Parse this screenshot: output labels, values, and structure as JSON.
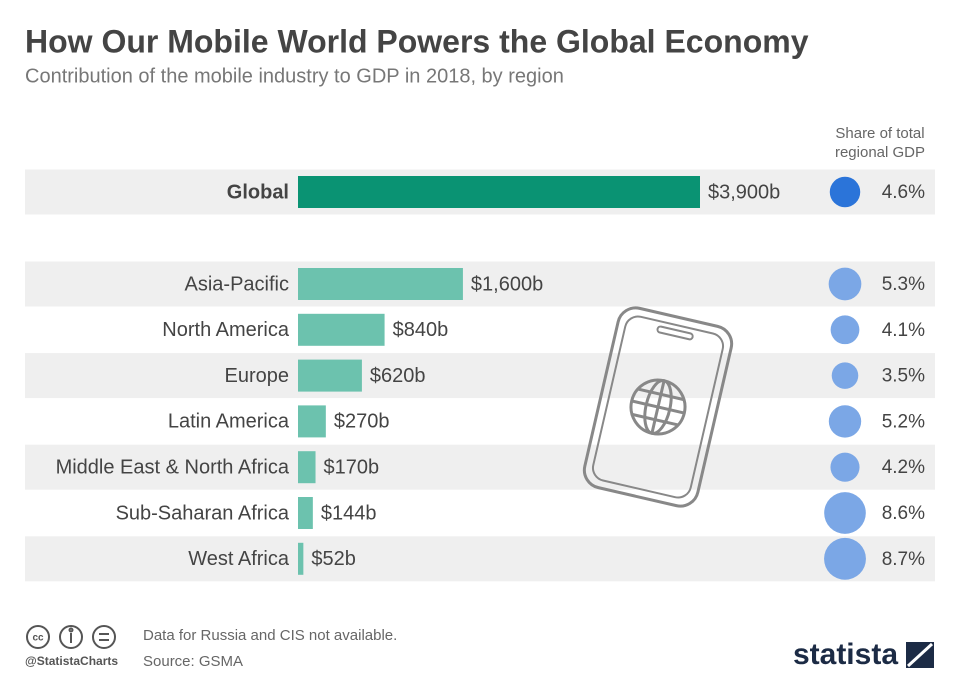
{
  "chart_data": {
    "type": "bar",
    "title": "How Our Mobile World Powers the Global Economy",
    "subtitle": "Contribution of the mobile industry to GDP in 2018, by region",
    "categories": [
      "Global",
      "Asia-Pacific",
      "North America",
      "Europe",
      "Latin America",
      "Middle East & North Africa",
      "Sub-Saharan Africa",
      "West Africa"
    ],
    "values": [
      3900,
      1600,
      840,
      620,
      270,
      170,
      144,
      52
    ],
    "value_labels": [
      "$3,900b",
      "$1,600b",
      "$840b",
      "$620b",
      "$270b",
      "$170b",
      "$144b",
      "$52b"
    ],
    "colors": [
      "#0a9373",
      "#6cc2ae",
      "#6cc2ae",
      "#6cc2ae",
      "#6cc2ae",
      "#6cc2ae",
      "#6cc2ae",
      "#6cc2ae"
    ],
    "share_header": "Share of total regional GDP",
    "shares": [
      4.6,
      5.3,
      4.1,
      3.5,
      5.2,
      4.2,
      8.6,
      8.7
    ],
    "share_labels": [
      "4.6%",
      "5.3%",
      "4.1%",
      "3.5%",
      "5.2%",
      "4.2%",
      "8.6%",
      "8.7%"
    ],
    "share_colors": [
      "#2b74d9",
      "#7ba7e6",
      "#7ba7e6",
      "#7ba7e6",
      "#7ba7e6",
      "#7ba7e6",
      "#7ba7e6",
      "#7ba7e6"
    ],
    "note": "Data for Russia and CIS not available.",
    "source": "Source: GSMA",
    "handle": "@StatistaCharts",
    "brand": "statista"
  }
}
